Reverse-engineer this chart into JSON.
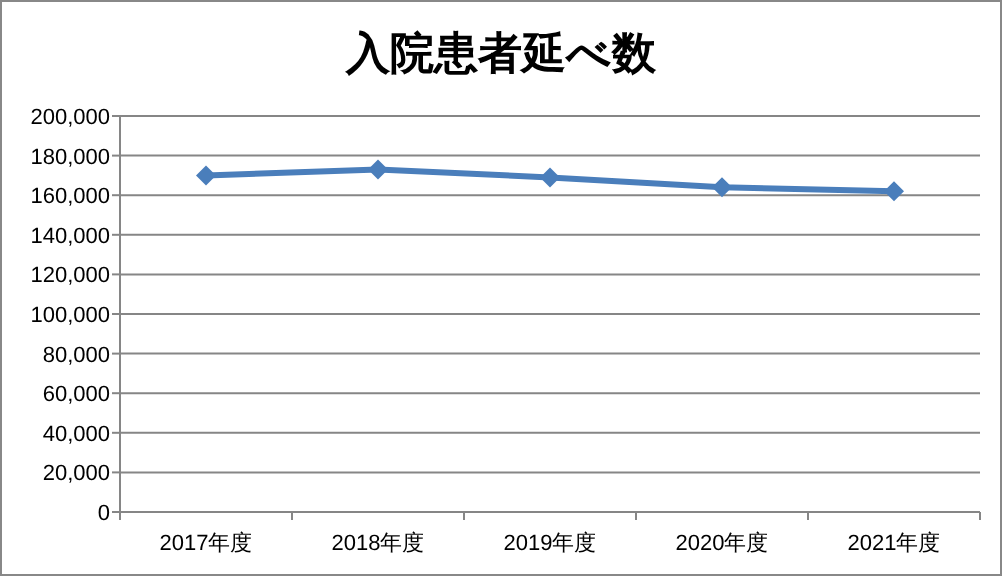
{
  "chart_data": {
    "type": "line",
    "title": "入院患者延べ数",
    "categories": [
      "2017年度",
      "2018年度",
      "2019年度",
      "2020年度",
      "2021年度"
    ],
    "series": [
      {
        "color": "#4a7ebb",
        "values": [
          170000,
          173000,
          169000,
          164000,
          162000
        ]
      }
    ],
    "ylim": [
      0,
      200000
    ],
    "yticks": [
      0,
      {
        "value": 20000,
        "label": "20,000"
      },
      {
        "value": 40000,
        "label": "40,000"
      },
      {
        "value": 60000,
        "label": "60,000"
      },
      {
        "value": 80000,
        "label": "80,000"
      },
      {
        "value": 100000,
        "label": "100,000"
      },
      {
        "value": 120000,
        "label": "120,000"
      },
      {
        "value": 140000,
        "label": "140,000"
      },
      {
        "value": 160000,
        "label": "160,000"
      },
      {
        "value": 180000,
        "label": "180,000"
      },
      {
        "value": 200000,
        "label": "200,000"
      }
    ],
    "grid": "y",
    "marker": "diamond",
    "line_style": "solid"
  }
}
